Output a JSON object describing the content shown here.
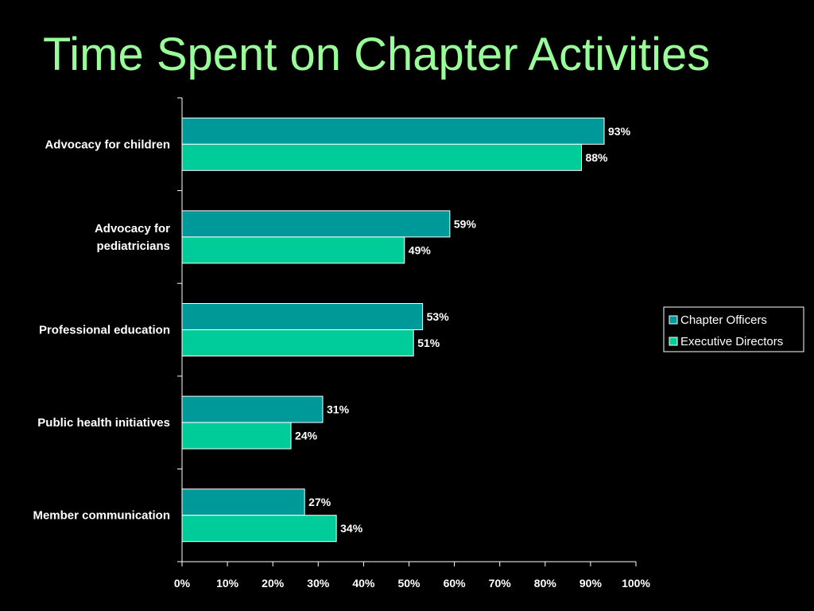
{
  "title": "Time Spent on Chapter Activities",
  "colors": {
    "background": "#000000",
    "title": "#99ff99",
    "chapter_officers": "#009999",
    "executive_directors": "#00cc99",
    "bar_outline": "#ffffff",
    "axis": "#ffffff",
    "text": "#ffffff"
  },
  "chart_data": {
    "type": "bar",
    "orientation": "horizontal",
    "title": "Time Spent on Chapter Activities",
    "categories": [
      "Advocacy for children",
      "Advocacy for pediatricians",
      "Professional education",
      "Public health initiatives",
      "Member communication"
    ],
    "category_label_lines": [
      [
        "Advocacy for children"
      ],
      [
        "Advocacy for",
        "pediatricians"
      ],
      [
        "Professional education"
      ],
      [
        "Public health initiatives"
      ],
      [
        "Member communication"
      ]
    ],
    "series": [
      {
        "name": "Chapter Officers",
        "values": [
          93,
          59,
          53,
          31,
          27
        ],
        "labels": [
          "93%",
          "59%",
          "53%",
          "31%",
          "27%"
        ]
      },
      {
        "name": "Executive Directors",
        "values": [
          88,
          49,
          51,
          24,
          34
        ],
        "labels": [
          "88%",
          "49%",
          "51%",
          "24%",
          "34%"
        ]
      }
    ],
    "xlim": [
      0,
      100
    ],
    "x_ticks": [
      "0%",
      "10%",
      "20%",
      "30%",
      "40%",
      "50%",
      "60%",
      "70%",
      "80%",
      "90%",
      "100%"
    ],
    "grid": false,
    "legend_position": "right"
  }
}
